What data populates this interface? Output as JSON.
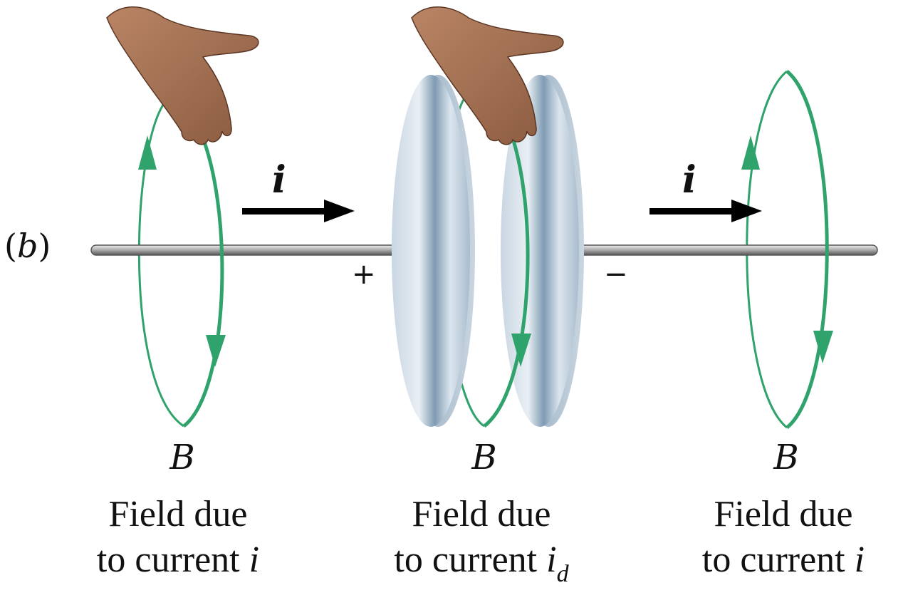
{
  "panel_label": {
    "open": "(",
    "letter": "b",
    "close": ")"
  },
  "current_label": "i",
  "plus_sign": "+",
  "minus_sign": "−",
  "field_symbol": "B",
  "captions": {
    "left": {
      "line1": "Field due",
      "line2_prefix": "to current ",
      "symbol": "i",
      "subscript": ""
    },
    "middle": {
      "line1": "Field due",
      "line2_prefix": "to current ",
      "symbol": "i",
      "subscript": "d"
    },
    "right": {
      "line1": "Field due",
      "line2_prefix": "to current ",
      "symbol": "i",
      "subscript": ""
    }
  },
  "colors": {
    "loop": "#2fa36b",
    "wire": "#9a9a9a",
    "arrow": "#000000",
    "plate": "#b9cad8",
    "hand": "#9b6a4d"
  }
}
